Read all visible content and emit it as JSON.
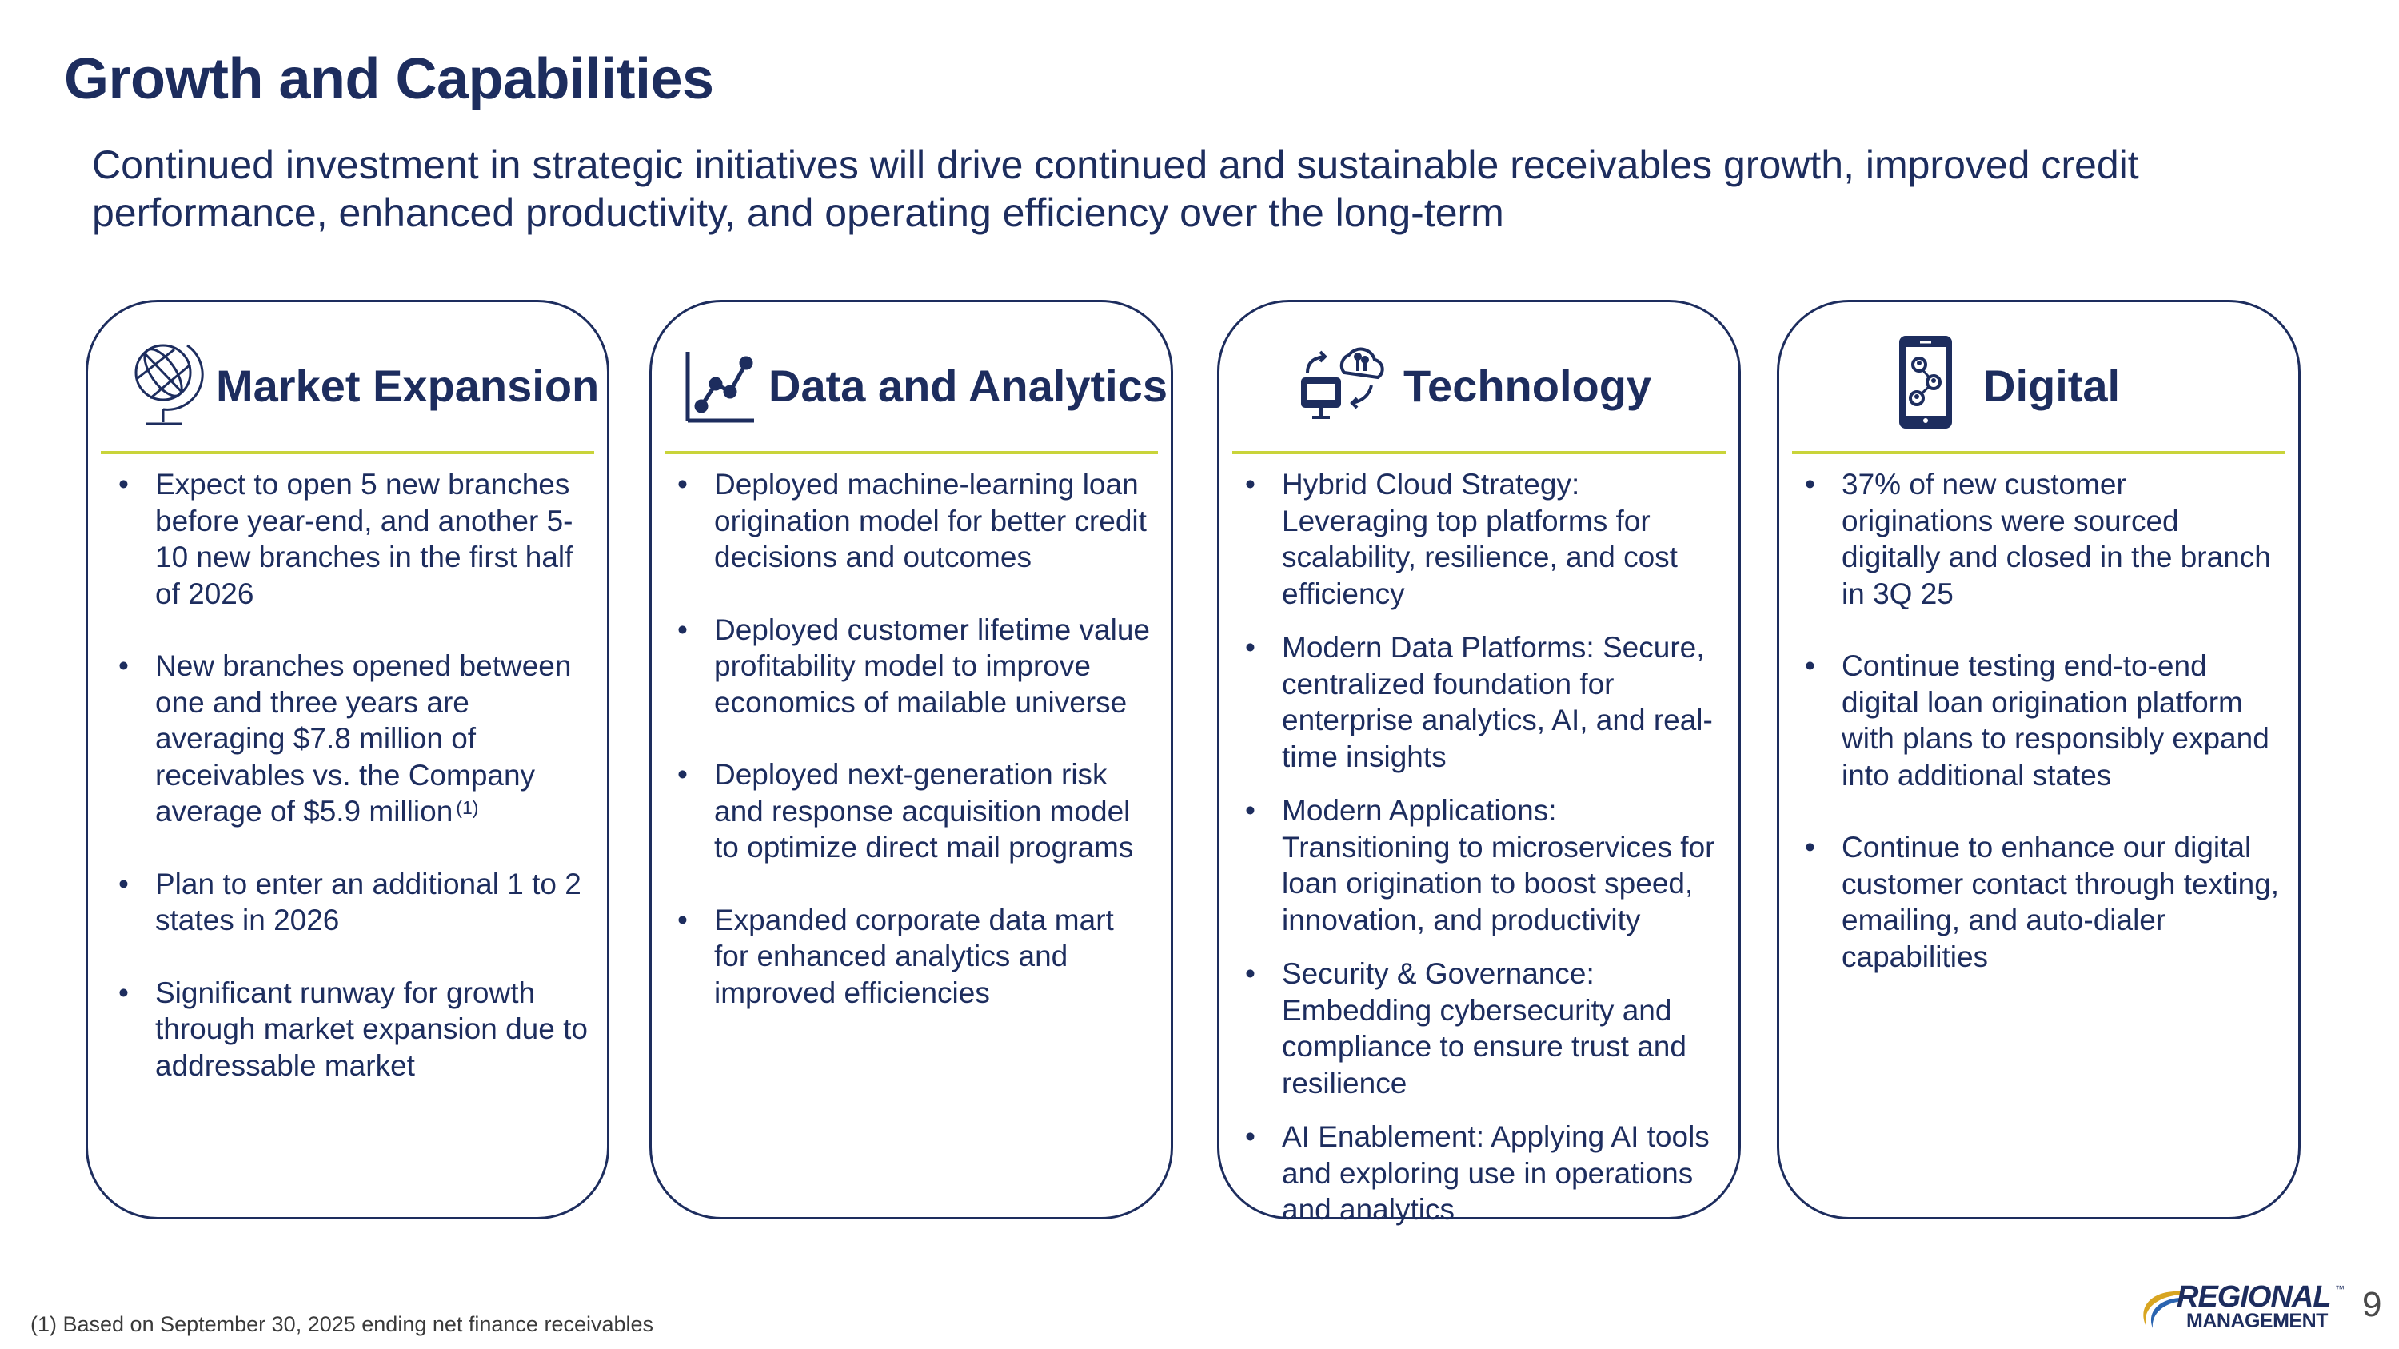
{
  "header": {
    "title": "Growth and Capabilities",
    "subtitle": "Continued investment in strategic initiatives will drive continued and sustainable receivables growth, improved credit performance, enhanced productivity, and operating efficiency over the long-term"
  },
  "cards": [
    {
      "title": "Market Expansion",
      "icon": "globe-icon",
      "bullets": [
        "Expect to open 5 new branches before year-end, and another 5-10 new branches in the first half of 2026",
        "New branches opened between one and three years are averaging $7.8 million of receivables vs. the Company average of $5.9 million",
        "Plan to enter an additional 1 to 2 states in 2026",
        "Significant runway for growth through market expansion due to addressable market"
      ],
      "footnote_marker": "(1)"
    },
    {
      "title": "Data and Analytics",
      "icon": "line-chart-icon",
      "bullets": [
        "Deployed machine-learning loan origination model for better credit decisions and outcomes",
        "Deployed customer lifetime value profitability model to improve economics of mailable universe",
        "Deployed next-generation risk and response acquisition model to optimize direct mail programs",
        "Expanded corporate data mart for enhanced analytics and improved efficiencies"
      ]
    },
    {
      "title": "Technology",
      "icon": "cloud-computer-icon",
      "bullets": [
        "Hybrid Cloud Strategy: Leveraging top platforms for scalability, resilience, and cost efficiency",
        "Modern Data Platforms: Secure, centralized foundation for enterprise analytics, AI, and real-time insights",
        "Modern Applications: Transitioning to microservices for loan origination to boost speed, innovation, and productivity",
        "Security & Governance: Embedding cybersecurity and compliance to ensure trust and resilience",
        "AI Enablement: Applying AI tools and exploring use in operations and analytics"
      ]
    },
    {
      "title": "Digital",
      "icon": "smartphone-network-icon",
      "bullets": [
        "37% of new customer originations were sourced digitally and closed in the branch in 3Q 25",
        "Continue testing end-to-end digital loan origination platform with plans to responsibly expand into additional states",
        "Continue to enhance our digital customer contact through texting, emailing, and auto-dialer capabilities"
      ]
    }
  ],
  "footer": {
    "footnote": "(1) Based on September 30, 2025 ending net finance receivables",
    "logo_top": "REGIONAL",
    "logo_tm": "™",
    "logo_bottom": "MANAGEMENT",
    "page_number": "9"
  },
  "colors": {
    "navy": "#1d2d5e",
    "accent_line": "#c9d43a",
    "logo_gold": "#d8a521",
    "logo_blue": "#2a64b0"
  }
}
